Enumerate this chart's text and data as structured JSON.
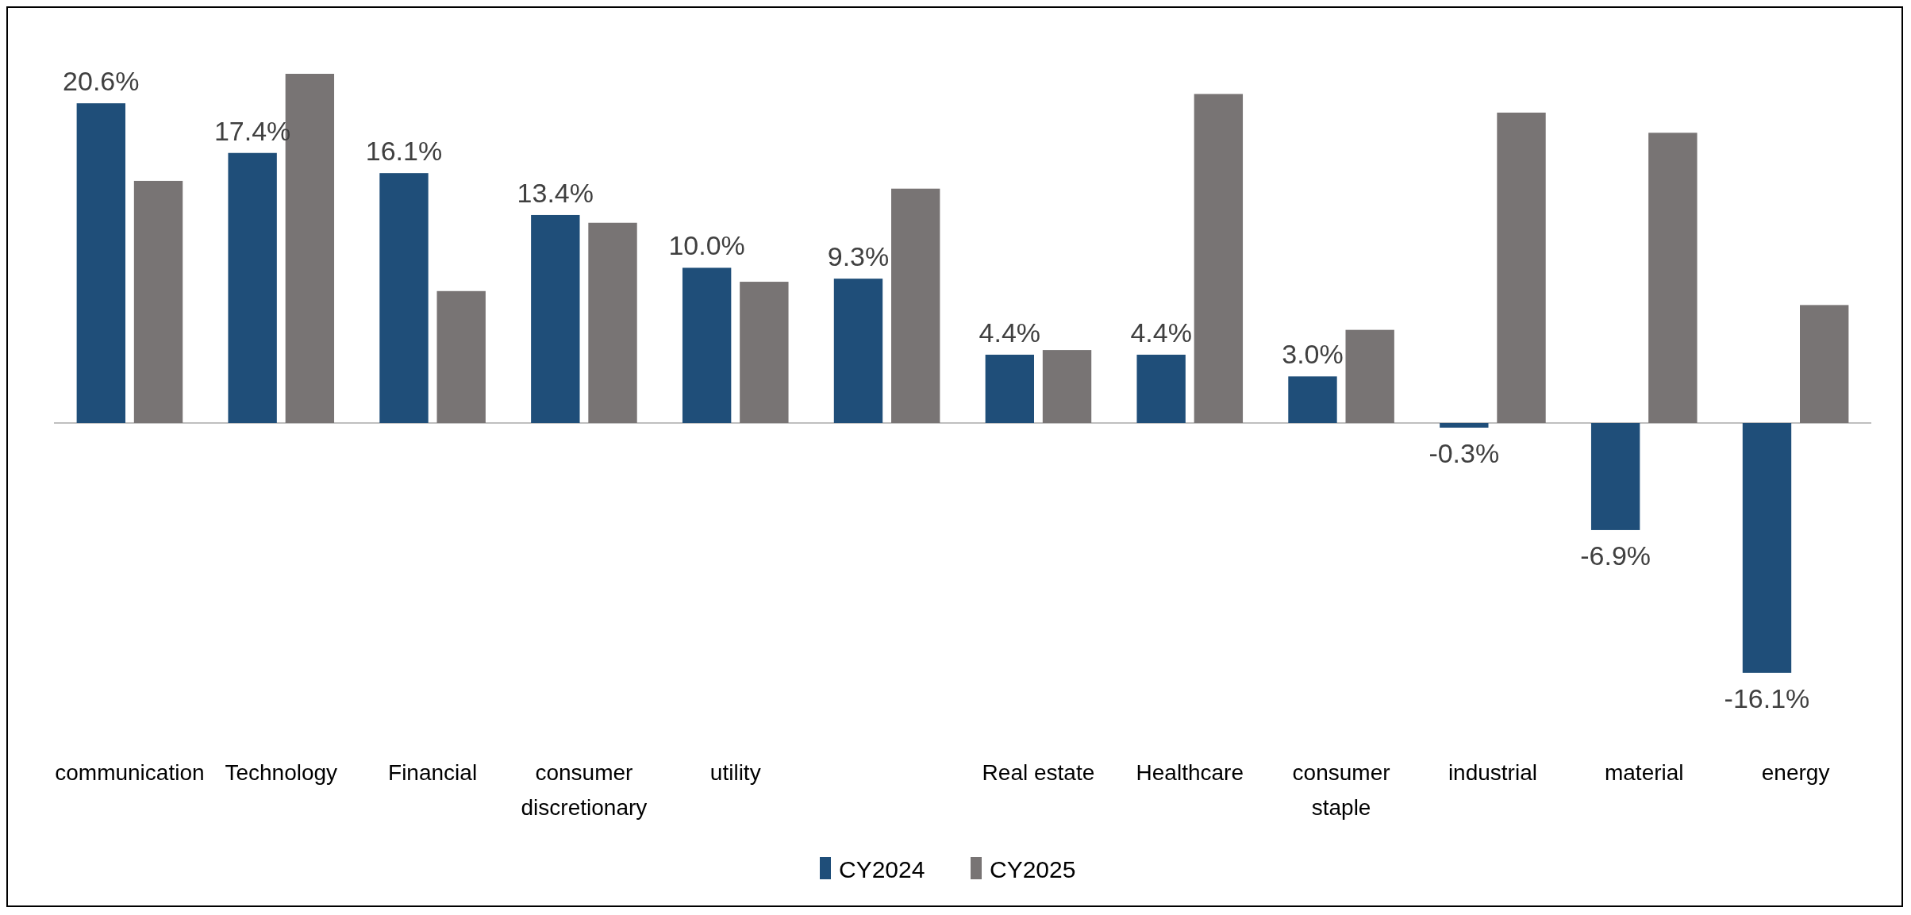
{
  "chart_data": {
    "type": "bar",
    "categories": [
      "communication",
      "Technology",
      "Financial",
      "consumer discretionary",
      "utility",
      null,
      "Real estate",
      "Healthcare",
      "consumer staple",
      "industrial",
      "material",
      "energy"
    ],
    "series": [
      {
        "name": "CY2024",
        "color": "#1f4e79",
        "values": [
          20.6,
          17.4,
          16.1,
          13.4,
          10.0,
          9.3,
          4.4,
          4.4,
          3.0,
          -0.3,
          -6.9,
          -16.1
        ],
        "value_labels": [
          "20.6%",
          "17.4%",
          "16.1%",
          "13.4%",
          "10.0%",
          "9.3%",
          "4.4%",
          "4.4%",
          "3.0%",
          "-0.3%",
          "-6.9%",
          "-16.1%"
        ]
      },
      {
        "name": "CY2025",
        "color": "#787474",
        "values": [
          15.6,
          22.5,
          8.5,
          12.9,
          9.1,
          15.1,
          4.7,
          21.2,
          6.0,
          20.0,
          18.7,
          7.6
        ]
      }
    ],
    "legend": "bottom"
  }
}
